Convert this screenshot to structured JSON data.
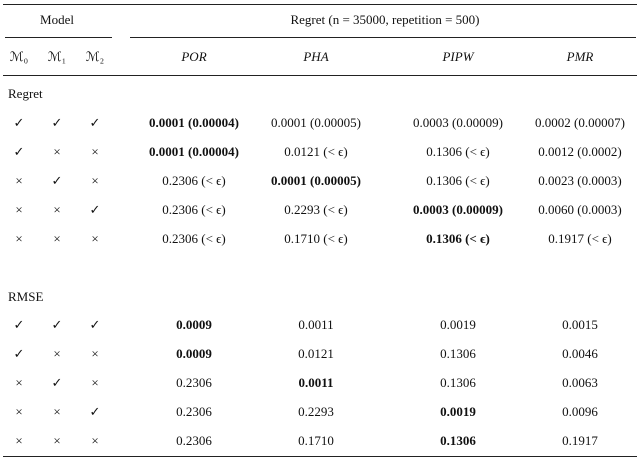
{
  "header": {
    "model": "Model",
    "regret": "Regret (n = 35000, repetition = 500)"
  },
  "columns": [
    "ℳ₀",
    "ℳ₁",
    "ℳ₂",
    "POR",
    "PHA",
    "PIPW",
    "PMR"
  ],
  "sections": [
    {
      "label": "Regret",
      "rows": [
        [
          "✓",
          "✓",
          "✓",
          "0.0001 (0.00004)",
          "0.0001 (0.00005)",
          "0.0003 (0.00009)",
          "0.0002 (0.00007)"
        ],
        [
          "✓",
          "×",
          "×",
          "0.0001 (0.00004)",
          "0.0121 (< ϵ)",
          "0.1306 (< ϵ)",
          "0.0012 (0.0002)"
        ],
        [
          "×",
          "✓",
          "×",
          "0.2306 (< ϵ)",
          "0.0001 (0.00005)",
          "0.1306 (< ϵ)",
          "0.0023 (0.0003)"
        ],
        [
          "×",
          "×",
          "✓",
          "0.2306 (< ϵ)",
          "0.2293 (< ϵ)",
          "0.0003 (0.00009)",
          "0.0060 (0.0003)"
        ],
        [
          "×",
          "×",
          "×",
          "0.2306 (< ϵ)",
          "0.1710 (< ϵ)",
          "0.1306 (< ϵ)",
          "0.1917 (< ϵ)"
        ]
      ]
    },
    {
      "label": "RMSE",
      "rows": [
        [
          "✓",
          "✓",
          "✓",
          "0.0009",
          "0.0011",
          "0.0019",
          "0.0015"
        ],
        [
          "✓",
          "×",
          "×",
          "0.0009",
          "0.0121",
          "0.1306",
          "0.0046"
        ],
        [
          "×",
          "✓",
          "×",
          "0.2306",
          "0.0011",
          "0.1306",
          "0.0063"
        ],
        [
          "×",
          "×",
          "✓",
          "0.2306",
          "0.2293",
          "0.0019",
          "0.0096"
        ],
        [
          "×",
          "×",
          "×",
          "0.2306",
          "0.1710",
          "0.1306",
          "0.1917"
        ]
      ]
    }
  ]
}
